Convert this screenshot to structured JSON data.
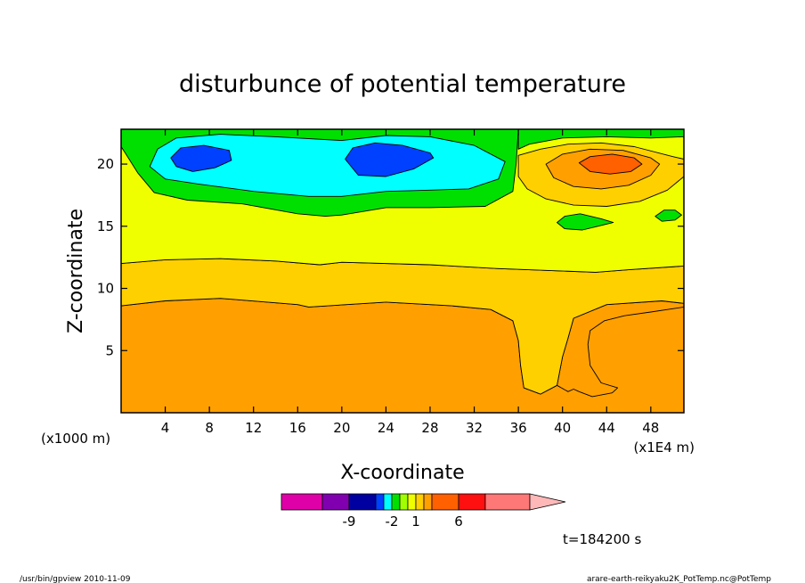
{
  "chart_data": {
    "type": "heatmap",
    "title": "disturbunce of potential temperature",
    "xlabel": "X-coordinate",
    "ylabel": "Z-coordinate",
    "x_unit_left": "(x1000 m)",
    "x_unit_right": "(x1E4 m)",
    "xlim": [
      0,
      51
    ],
    "ylim": [
      0,
      22.8
    ],
    "x_ticks": [
      4,
      8,
      12,
      16,
      20,
      24,
      28,
      32,
      36,
      40,
      44,
      48
    ],
    "y_ticks": [
      5,
      10,
      15,
      20
    ],
    "time_label": "t=184200 s",
    "colorbar": {
      "levels": [
        -12,
        -9,
        -6,
        -3,
        -2,
        -1,
        0,
        1,
        2,
        3,
        6,
        9,
        12
      ],
      "labels": [
        "-9",
        "-2",
        "1",
        "6"
      ],
      "label_values": [
        -9,
        -2,
        1,
        6
      ],
      "colors": [
        "#e000a8",
        "#8000b0",
        "#0000a0",
        "#0040ff",
        "#00ffff",
        "#00e000",
        "#a0ff00",
        "#f0ff00",
        "#ffd000",
        "#ffa000",
        "#ff6000",
        "#ff1010",
        "#ff7878",
        "#ffb8b8"
      ]
    },
    "regions": [
      {
        "name": "orange",
        "color": "#ffa000",
        "points": [
          [
            0,
            0
          ],
          [
            51,
            0
          ],
          [
            51,
            8.8
          ],
          [
            49,
            9.0
          ],
          [
            44,
            8.7
          ],
          [
            41,
            7.6
          ],
          [
            40.5,
            6
          ],
          [
            40,
            4.5
          ],
          [
            39.5,
            2.2
          ],
          [
            38,
            1.5
          ],
          [
            36.5,
            2.0
          ],
          [
            36.2,
            3.8
          ],
          [
            36,
            5.8
          ],
          [
            35.5,
            7.4
          ],
          [
            33.5,
            8.3
          ],
          [
            30,
            8.6
          ],
          [
            24,
            8.9
          ],
          [
            17,
            8.5
          ],
          [
            16,
            8.7
          ],
          [
            9,
            9.2
          ],
          [
            4,
            9.0
          ],
          [
            0,
            8.6
          ]
        ]
      },
      {
        "name": "orange-inner",
        "color": "#ffa000",
        "points": [
          [
            39.5,
            2.2
          ],
          [
            40.5,
            1.7
          ],
          [
            41,
            1.9
          ],
          [
            41.5,
            1.7
          ],
          [
            42.7,
            1.3
          ],
          [
            44.5,
            1.6
          ],
          [
            45,
            2.0
          ],
          [
            43.5,
            2.4
          ],
          [
            42.5,
            3.8
          ],
          [
            42.3,
            5.5
          ],
          [
            42.5,
            6.6
          ],
          [
            43.8,
            7.4
          ],
          [
            45.6,
            7.8
          ],
          [
            48,
            8.1
          ],
          [
            51,
            8.5
          ],
          [
            51,
            8.8
          ],
          [
            49,
            9.0
          ],
          [
            44,
            8.7
          ],
          [
            41,
            7.6
          ],
          [
            40.5,
            6
          ],
          [
            40,
            4.5
          ]
        ]
      },
      {
        "name": "gold",
        "color": "#ffd000",
        "points": [
          [
            0,
            8.6
          ],
          [
            4,
            9.0
          ],
          [
            9,
            9.2
          ],
          [
            16,
            8.7
          ],
          [
            17,
            8.5
          ],
          [
            24,
            8.9
          ],
          [
            30,
            8.6
          ],
          [
            33.5,
            8.3
          ],
          [
            35.5,
            7.4
          ],
          [
            36,
            5.8
          ],
          [
            36.2,
            3.8
          ],
          [
            36.5,
            2.0
          ],
          [
            38,
            1.5
          ],
          [
            39.5,
            2.2
          ],
          [
            40,
            4.5
          ],
          [
            40.5,
            6
          ],
          [
            41,
            7.6
          ],
          [
            44,
            8.7
          ],
          [
            49,
            9.0
          ],
          [
            51,
            8.8
          ],
          [
            51,
            11.8
          ],
          [
            46,
            11.5
          ],
          [
            43,
            11.3
          ],
          [
            34,
            11.6
          ],
          [
            28,
            11.9
          ],
          [
            20,
            12.1
          ],
          [
            18,
            11.9
          ],
          [
            14,
            12.2
          ],
          [
            9,
            12.4
          ],
          [
            4,
            12.3
          ],
          [
            0,
            12.0
          ]
        ]
      },
      {
        "name": "yellow",
        "color": "#f0ff00",
        "points": [
          [
            0,
            12.0
          ],
          [
            4,
            12.3
          ],
          [
            9,
            12.4
          ],
          [
            14,
            12.2
          ],
          [
            18,
            11.9
          ],
          [
            20,
            12.1
          ],
          [
            28,
            11.9
          ],
          [
            34,
            11.6
          ],
          [
            43,
            11.3
          ],
          [
            46,
            11.5
          ],
          [
            51,
            11.8
          ],
          [
            51,
            22.8
          ],
          [
            0,
            22.8
          ]
        ]
      },
      {
        "name": "gold-top-right",
        "color": "#ffd000",
        "points": [
          [
            36,
            20.7
          ],
          [
            38,
            21.2
          ],
          [
            40.5,
            21.6
          ],
          [
            43.5,
            21.7
          ],
          [
            46.5,
            21.4
          ],
          [
            50,
            20.6
          ],
          [
            51,
            20.4
          ],
          [
            51,
            19.0
          ],
          [
            49.5,
            17.9
          ],
          [
            47,
            17.0
          ],
          [
            44,
            16.6
          ],
          [
            41,
            16.7
          ],
          [
            38.5,
            17.2
          ],
          [
            36.8,
            18.0
          ],
          [
            36,
            19.0
          ]
        ]
      },
      {
        "name": "orange-top-right",
        "color": "#ffa000",
        "points": [
          [
            38.5,
            20.0
          ],
          [
            40,
            20.8
          ],
          [
            42.5,
            21.2
          ],
          [
            45.5,
            21.1
          ],
          [
            48,
            20.5
          ],
          [
            48.8,
            20.0
          ],
          [
            48,
            19.1
          ],
          [
            46,
            18.3
          ],
          [
            43.5,
            18.0
          ],
          [
            41,
            18.2
          ],
          [
            39.2,
            18.9
          ]
        ]
      },
      {
        "name": "orange-deep",
        "color": "#ff6000",
        "points": [
          [
            41.5,
            20.1
          ],
          [
            42.5,
            20.6
          ],
          [
            44.5,
            20.8
          ],
          [
            46.5,
            20.5
          ],
          [
            47.2,
            20.0
          ],
          [
            46.2,
            19.4
          ],
          [
            44.3,
            19.2
          ],
          [
            42.5,
            19.4
          ]
        ]
      },
      {
        "name": "green-top",
        "color": "#00e000",
        "points": [
          [
            0,
            22.8
          ],
          [
            36,
            22.8
          ],
          [
            35.8,
            20.0
          ],
          [
            35.5,
            17.8
          ],
          [
            33,
            16.6
          ],
          [
            28,
            16.5
          ],
          [
            24,
            16.5
          ],
          [
            20,
            15.9
          ],
          [
            18.5,
            15.8
          ],
          [
            16,
            16.0
          ],
          [
            11,
            16.8
          ],
          [
            6,
            17.1
          ],
          [
            3,
            17.7
          ],
          [
            1.5,
            19.3
          ],
          [
            0.3,
            21.0
          ],
          [
            0,
            21.4
          ]
        ]
      },
      {
        "name": "green-top-2",
        "color": "#00e000",
        "points": [
          [
            36,
            22.8
          ],
          [
            51,
            22.8
          ],
          [
            51,
            22.2
          ],
          [
            48,
            22.1
          ],
          [
            44,
            22.2
          ],
          [
            40,
            22.1
          ],
          [
            37,
            21.6
          ],
          [
            36,
            21.2
          ]
        ]
      },
      {
        "name": "cyan",
        "color": "#00ffff",
        "points": [
          [
            2.6,
            19.8
          ],
          [
            3.3,
            21.2
          ],
          [
            5,
            22.1
          ],
          [
            9,
            22.4
          ],
          [
            14,
            22.2
          ],
          [
            20,
            21.9
          ],
          [
            24,
            22.3
          ],
          [
            28,
            22.2
          ],
          [
            32,
            21.5
          ],
          [
            34.8,
            20.2
          ],
          [
            34.2,
            18.8
          ],
          [
            31.5,
            18.0
          ],
          [
            28,
            17.9
          ],
          [
            24,
            17.8
          ],
          [
            20,
            17.4
          ],
          [
            17,
            17.4
          ],
          [
            12,
            17.8
          ],
          [
            7,
            18.4
          ],
          [
            4,
            18.8
          ]
        ]
      },
      {
        "name": "blue-left",
        "color": "#0040ff",
        "points": [
          [
            4.5,
            20.5
          ],
          [
            5.4,
            21.3
          ],
          [
            7.5,
            21.5
          ],
          [
            9.8,
            21.1
          ],
          [
            10,
            20.3
          ],
          [
            8.5,
            19.7
          ],
          [
            6.5,
            19.4
          ],
          [
            5,
            19.8
          ]
        ]
      },
      {
        "name": "blue-right",
        "color": "#0040ff",
        "points": [
          [
            20.3,
            20.4
          ],
          [
            21,
            21.3
          ],
          [
            23,
            21.7
          ],
          [
            25.5,
            21.5
          ],
          [
            28,
            20.9
          ],
          [
            28.3,
            20.5
          ],
          [
            26.5,
            19.6
          ],
          [
            24,
            19.0
          ],
          [
            21.5,
            19.1
          ]
        ]
      },
      {
        "name": "green-blob-1",
        "color": "#00e000",
        "points": [
          [
            39.5,
            15.3
          ],
          [
            40.2,
            15.8
          ],
          [
            41.6,
            16.0
          ],
          [
            43.5,
            15.6
          ],
          [
            44.6,
            15.3
          ],
          [
            43.2,
            15.0
          ],
          [
            41.8,
            14.7
          ],
          [
            40.2,
            14.8
          ]
        ]
      },
      {
        "name": "green-blob-2",
        "color": "#00e000",
        "points": [
          [
            48.4,
            15.8
          ],
          [
            49.2,
            16.3
          ],
          [
            50.2,
            16.3
          ],
          [
            50.8,
            15.9
          ],
          [
            50.2,
            15.5
          ],
          [
            49.0,
            15.4
          ]
        ]
      }
    ]
  },
  "footer": {
    "left": "/usr/bin/gpview   2010-11-09",
    "right": "arare-earth-reikyaku2K_PotTemp.nc@PotTemp"
  }
}
